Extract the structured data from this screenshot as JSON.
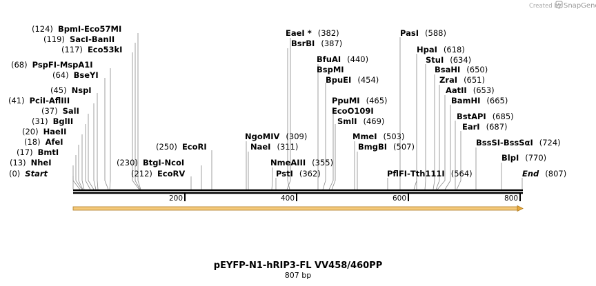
{
  "credit": {
    "text": "Created by",
    "brand": "SnapGene",
    "logo_icon": "snapgene-logo-icon"
  },
  "plasmid": {
    "name": "pEYFP-N1-hRIP3-FL VV458/460PP",
    "length_label": "807 bp",
    "length": 807
  },
  "scale": {
    "ticks": [
      "200",
      "400",
      "600",
      "800"
    ]
  },
  "feature_arrow": {
    "color": "#e6a83c",
    "start": 0,
    "end": 807
  },
  "sites": [
    {
      "pos_label": "(124)",
      "names": [
        "BpmI",
        "Eco57MI"
      ],
      "pos": 124
    },
    {
      "pos_label": "(119)",
      "names": [
        "SacI",
        "BanII"
      ],
      "pos": 119
    },
    {
      "pos_label": "(117)",
      "names": [
        "Eco53kI"
      ],
      "pos": 117
    },
    {
      "pos_label": "(68)",
      "names": [
        "PspFI",
        "MspA1I"
      ],
      "pos": 68
    },
    {
      "pos_label": "(64)",
      "names": [
        "BseYI"
      ],
      "pos": 64
    },
    {
      "pos_label": "(45)",
      "names": [
        "NspI"
      ],
      "pos": 45
    },
    {
      "pos_label": "(41)",
      "names": [
        "PciI",
        "AflIII"
      ],
      "pos": 41
    },
    {
      "pos_label": "(37)",
      "names": [
        "SalI"
      ],
      "pos": 37
    },
    {
      "pos_label": "(31)",
      "names": [
        "BglII"
      ],
      "pos": 31
    },
    {
      "pos_label": "(20)",
      "names": [
        "HaeII"
      ],
      "pos": 20
    },
    {
      "pos_label": "(18)",
      "names": [
        "AfeI"
      ],
      "pos": 18
    },
    {
      "pos_label": "(17)",
      "names": [
        "BmtI"
      ],
      "pos": 17
    },
    {
      "pos_label": "(13)",
      "names": [
        "NheI"
      ],
      "pos": 13
    },
    {
      "pos_label": "(0)",
      "names": [
        "Start"
      ],
      "pos": 0,
      "italic": true
    },
    {
      "pos_label": "(250)",
      "names": [
        "EcoRI"
      ],
      "pos": 250
    },
    {
      "pos_label": "(230)",
      "names": [
        "BtgI",
        "NcoI"
      ],
      "pos": 230
    },
    {
      "pos_label": "(212)",
      "names": [
        "EcoRV"
      ],
      "pos": 212
    },
    {
      "pos_label": "(382)",
      "names": [
        "EaeI *"
      ],
      "pos": 382
    },
    {
      "pos_label": "(387)",
      "names": [
        "BsrBI"
      ],
      "pos": 387
    },
    {
      "pos_label": "(309)",
      "names": [
        "NgoMIV"
      ],
      "pos": 309
    },
    {
      "pos_label": "(311)",
      "names": [
        "NaeI"
      ],
      "pos": 311
    },
    {
      "pos_label": "(355)",
      "names": [
        "NmeAIII"
      ],
      "pos": 355
    },
    {
      "pos_label": "(362)",
      "names": [
        "PstI"
      ],
      "pos": 362
    },
    {
      "pos_label": "(440)",
      "names": [
        "BfuAI"
      ],
      "pos": 440
    },
    {
      "pos_label": "",
      "names": [
        "BspMI"
      ],
      "pos": 440
    },
    {
      "pos_label": "(454)",
      "names": [
        "BpuEI"
      ],
      "pos": 454
    },
    {
      "pos_label": "(465)",
      "names": [
        "PpuMI"
      ],
      "pos": 465
    },
    {
      "pos_label": "",
      "names": [
        "EcoO109I"
      ],
      "pos": 465
    },
    {
      "pos_label": "(469)",
      "names": [
        "SmlI"
      ],
      "pos": 469
    },
    {
      "pos_label": "(503)",
      "names": [
        "MmeI"
      ],
      "pos": 503
    },
    {
      "pos_label": "(507)",
      "names": [
        "BmgBI"
      ],
      "pos": 507
    },
    {
      "pos_label": "(588)",
      "names": [
        "PasI"
      ],
      "pos": 588
    },
    {
      "pos_label": "(618)",
      "names": [
        "HpaI"
      ],
      "pos": 618
    },
    {
      "pos_label": "(634)",
      "names": [
        "StuI"
      ],
      "pos": 634
    },
    {
      "pos_label": "(650)",
      "names": [
        "BsaHI"
      ],
      "pos": 650
    },
    {
      "pos_label": "(651)",
      "names": [
        "ZraI"
      ],
      "pos": 651
    },
    {
      "pos_label": "(653)",
      "names": [
        "AatII"
      ],
      "pos": 653
    },
    {
      "pos_label": "(665)",
      "names": [
        "BamHI"
      ],
      "pos": 665
    },
    {
      "pos_label": "(685)",
      "names": [
        "BstAPI"
      ],
      "pos": 685
    },
    {
      "pos_label": "(687)",
      "names": [
        "EarI"
      ],
      "pos": 687
    },
    {
      "pos_label": "(724)",
      "names": [
        "BssSI",
        "BssSαI"
      ],
      "pos": 724
    },
    {
      "pos_label": "(770)",
      "names": [
        "BlpI"
      ],
      "pos": 770
    },
    {
      "pos_label": "(564)",
      "names": [
        "PflFI",
        "Tth111I"
      ],
      "pos": 564
    },
    {
      "pos_label": "(807)",
      "names": [
        "End"
      ],
      "pos": 807,
      "italic": true
    }
  ]
}
